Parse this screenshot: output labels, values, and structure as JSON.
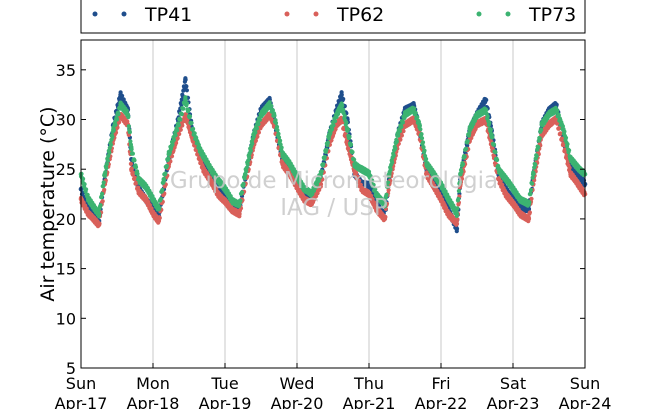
{
  "chart_data": {
    "type": "scatter",
    "ylabel": "Air temperature (°C)",
    "ylim": [
      5,
      38
    ],
    "yticks": [
      5,
      10,
      15,
      20,
      25,
      30,
      35
    ],
    "x_range_days": [
      0,
      7
    ],
    "x_ticks": [
      {
        "day": 0,
        "weekday": "Sun",
        "date": "Apr-17"
      },
      {
        "day": 1,
        "weekday": "Mon",
        "date": "Apr-18"
      },
      {
        "day": 2,
        "weekday": "Tue",
        "date": "Apr-19"
      },
      {
        "day": 3,
        "weekday": "Wed",
        "date": "Apr-20"
      },
      {
        "day": 4,
        "weekday": "Thu",
        "date": "Apr-21"
      },
      {
        "day": 5,
        "weekday": "Fri",
        "date": "Apr-22"
      },
      {
        "day": 6,
        "weekday": "Sat",
        "date": "Apr-23"
      },
      {
        "day": 7,
        "weekday": "Sun",
        "date": "Apr-24"
      }
    ],
    "grid": "vertical",
    "legend_position": "top",
    "watermark": [
      "Grupo de Micrometeorologia",
      "IAG / USP"
    ],
    "series": [
      {
        "name": "TP41",
        "color": "#1f4e8c",
        "x": [
          0.0,
          0.1,
          0.25,
          0.33,
          0.45,
          0.55,
          0.65,
          0.7,
          0.8,
          0.9,
          1.0,
          1.08,
          1.15,
          1.22,
          1.35,
          1.45,
          1.55,
          1.65,
          1.7,
          1.8,
          1.9,
          2.0,
          2.1,
          2.2,
          2.28,
          2.4,
          2.5,
          2.62,
          2.68,
          2.8,
          2.9,
          3.0,
          3.1,
          3.2,
          3.33,
          3.45,
          3.55,
          3.62,
          3.7,
          3.8,
          3.9,
          4.0,
          4.1,
          4.22,
          4.28,
          4.4,
          4.5,
          4.62,
          4.7,
          4.8,
          4.9,
          5.0,
          5.1,
          5.22,
          5.27,
          5.4,
          5.5,
          5.62,
          5.7,
          5.8,
          5.9,
          6.0,
          6.1,
          6.22,
          6.28,
          6.4,
          6.5,
          6.6,
          6.7,
          6.8,
          6.9,
          7.0
        ],
        "values": [
          23.0,
          21.0,
          19.8,
          24.0,
          29.5,
          32.5,
          31.0,
          26.0,
          23.0,
          22.0,
          21.0,
          20.3,
          23.0,
          26.0,
          30.0,
          34.0,
          28.5,
          26.5,
          25.8,
          24.2,
          23.0,
          22.0,
          21.0,
          20.8,
          24.0,
          28.5,
          31.0,
          32.0,
          30.0,
          26.0,
          25.0,
          23.5,
          22.5,
          21.8,
          24.0,
          28.5,
          31.0,
          32.5,
          30.0,
          24.5,
          23.5,
          23.5,
          21.5,
          20.2,
          24.0,
          28.5,
          31.0,
          31.5,
          29.0,
          25.0,
          24.0,
          22.5,
          21.0,
          19.0,
          24.0,
          29.0,
          30.5,
          32.0,
          29.0,
          24.5,
          23.0,
          22.0,
          21.0,
          21.0,
          24.0,
          29.5,
          31.0,
          31.5,
          28.0,
          25.5,
          24.5,
          23.5
        ]
      },
      {
        "name": "TP62",
        "color": "#d9605a",
        "x": [
          0.0,
          0.1,
          0.25,
          0.33,
          0.45,
          0.55,
          0.65,
          0.7,
          0.8,
          0.9,
          1.0,
          1.08,
          1.15,
          1.22,
          1.35,
          1.45,
          1.55,
          1.65,
          1.7,
          1.8,
          1.9,
          2.0,
          2.1,
          2.2,
          2.28,
          2.4,
          2.5,
          2.62,
          2.68,
          2.8,
          2.9,
          3.0,
          3.1,
          3.2,
          3.33,
          3.45,
          3.55,
          3.62,
          3.7,
          3.8,
          3.9,
          4.0,
          4.1,
          4.22,
          4.28,
          4.4,
          4.5,
          4.62,
          4.7,
          4.8,
          4.9,
          5.0,
          5.1,
          5.22,
          5.27,
          5.4,
          5.5,
          5.62,
          5.7,
          5.8,
          5.9,
          6.0,
          6.1,
          6.22,
          6.28,
          6.4,
          6.5,
          6.6,
          6.7,
          6.8,
          6.9,
          7.0
        ],
        "values": [
          22.0,
          20.5,
          19.4,
          23.5,
          28.0,
          30.5,
          29.5,
          25.0,
          22.8,
          22.0,
          20.5,
          19.8,
          22.5,
          25.5,
          28.5,
          30.5,
          28.0,
          26.0,
          25.0,
          23.8,
          22.5,
          21.8,
          20.8,
          20.5,
          23.5,
          27.5,
          29.5,
          30.5,
          29.5,
          25.5,
          24.5,
          23.2,
          22.0,
          21.5,
          23.5,
          27.5,
          29.5,
          30.0,
          27.5,
          24.8,
          23.0,
          22.5,
          21.0,
          20.0,
          23.5,
          27.5,
          29.5,
          30.0,
          28.5,
          24.5,
          23.2,
          22.0,
          20.5,
          19.5,
          23.5,
          28.0,
          29.5,
          30.0,
          27.5,
          24.0,
          22.5,
          21.5,
          20.5,
          20.0,
          23.5,
          28.5,
          29.5,
          30.0,
          27.5,
          24.5,
          23.5,
          22.5
        ]
      },
      {
        "name": "TP73",
        "color": "#3cb371",
        "x": [
          0.0,
          0.1,
          0.25,
          0.33,
          0.45,
          0.55,
          0.65,
          0.7,
          0.8,
          0.9,
          1.0,
          1.08,
          1.15,
          1.22,
          1.35,
          1.45,
          1.55,
          1.65,
          1.7,
          1.8,
          1.9,
          2.0,
          2.1,
          2.2,
          2.28,
          2.4,
          2.5,
          2.62,
          2.68,
          2.8,
          2.9,
          3.0,
          3.1,
          3.2,
          3.33,
          3.45,
          3.55,
          3.62,
          3.7,
          3.8,
          3.9,
          4.0,
          4.1,
          4.22,
          4.28,
          4.4,
          4.5,
          4.62,
          4.7,
          4.8,
          4.9,
          5.0,
          5.1,
          5.22,
          5.27,
          5.4,
          5.5,
          5.62,
          5.7,
          5.8,
          5.9,
          6.0,
          6.1,
          6.22,
          6.28,
          6.4,
          6.5,
          6.6,
          6.7,
          6.8,
          6.9,
          7.0
        ],
        "values": [
          24.5,
          22.0,
          20.5,
          24.5,
          29.0,
          31.5,
          30.5,
          27.0,
          24.0,
          23.2,
          22.0,
          21.0,
          24.0,
          26.5,
          29.5,
          32.0,
          29.0,
          27.0,
          26.3,
          25.0,
          24.0,
          23.0,
          21.8,
          21.5,
          24.5,
          28.5,
          30.5,
          31.5,
          30.5,
          26.5,
          25.5,
          24.3,
          23.0,
          22.5,
          24.5,
          28.5,
          30.5,
          31.5,
          29.0,
          25.5,
          25.0,
          24.5,
          22.5,
          21.5,
          24.5,
          28.5,
          30.5,
          31.0,
          29.5,
          25.5,
          24.5,
          23.5,
          22.0,
          20.5,
          24.5,
          29.0,
          30.5,
          31.0,
          28.5,
          25.0,
          24.0,
          23.0,
          22.0,
          21.5,
          24.5,
          29.5,
          30.5,
          31.0,
          29.0,
          26.0,
          25.2,
          24.5
        ]
      }
    ]
  }
}
